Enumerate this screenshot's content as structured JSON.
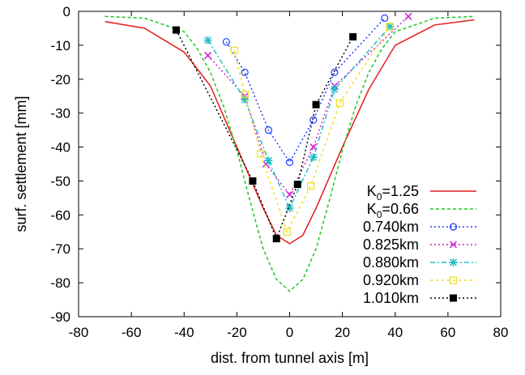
{
  "chart_data": {
    "type": "line",
    "xlabel": "dist. from tunnel axis [m]",
    "ylabel": "surf. settlement [mm]",
    "xlim": [
      -80,
      80
    ],
    "ylim": [
      -90,
      0
    ],
    "xticks": [
      -80,
      -60,
      -40,
      -20,
      0,
      20,
      40,
      60,
      80
    ],
    "yticks": [
      0,
      -10,
      -20,
      -30,
      -40,
      -50,
      -60,
      -70,
      -80,
      -90
    ],
    "grid": false,
    "legend_position": "bottom-right",
    "series": [
      {
        "name": "K0=1.25",
        "name_main": "K",
        "name_sub": "0",
        "name_rest": "=1.25",
        "color": "#e41a1c",
        "dash": "",
        "marker": "none",
        "x": [
          -70,
          -55,
          -40,
          -30,
          -20,
          -10,
          -5,
          0,
          5,
          10,
          20,
          30,
          40,
          55,
          70
        ],
        "y": [
          -3,
          -5,
          -12,
          -22,
          -40,
          -58,
          -66,
          -68.5,
          -66,
          -58,
          -40,
          -23,
          -10,
          -4,
          -2.5
        ]
      },
      {
        "name": "K0=0.66",
        "name_main": "K",
        "name_sub": "0",
        "name_rest": "=0.66",
        "color": "#1ec81e",
        "dash": "4,3",
        "marker": "none",
        "x": [
          -70,
          -55,
          -40,
          -35,
          -30,
          -25,
          -20,
          -15,
          -10,
          -5,
          0,
          5,
          10,
          15,
          20,
          25,
          30,
          35,
          40,
          55,
          70
        ],
        "y": [
          -1.5,
          -2,
          -6,
          -11,
          -18,
          -28,
          -41,
          -56,
          -70,
          -79,
          -82.5,
          -79,
          -70,
          -56,
          -41,
          -28,
          -18,
          -11,
          -6,
          -2,
          -1.5
        ]
      },
      {
        "name": "0.740km",
        "color": "#1e3cff",
        "dash": "2,3",
        "marker": "circle",
        "x": [
          -24,
          -17,
          -8,
          0,
          9,
          17,
          36
        ],
        "y": [
          -9,
          -18,
          -35,
          -44.5,
          -32,
          -18,
          -2
        ]
      },
      {
        "name": "0.825km",
        "color": "#d21ed2",
        "dash": "2,3",
        "marker": "cross",
        "x": [
          -31,
          -17,
          -9,
          0,
          9,
          17,
          45
        ],
        "y": [
          -13,
          -25,
          -45,
          -54,
          -40,
          -22,
          -1.5
        ]
      },
      {
        "name": "0.880km",
        "color": "#1ebec8",
        "dash": "6,3,2,3",
        "marker": "star",
        "x": [
          -31,
          -17,
          -8,
          0,
          9,
          17,
          38
        ],
        "y": [
          -8.5,
          -26,
          -44,
          -58,
          -43,
          -23,
          -4.5
        ]
      },
      {
        "name": "0.920km",
        "color": "#f0dc1e",
        "dash": "3,4",
        "marker": "square",
        "x": [
          -21,
          -17,
          -11,
          -1,
          8,
          19,
          38
        ],
        "y": [
          -11.5,
          -24.5,
          -42,
          -65,
          -51.5,
          -27,
          -4.5
        ]
      },
      {
        "name": "1.010km",
        "color": "#000000",
        "dash": "2,3",
        "marker": "filledsquare",
        "x": [
          -43,
          -14,
          -5,
          3,
          10,
          24
        ],
        "y": [
          -5.5,
          -50,
          -67,
          -51,
          -27.5,
          -7.5
        ]
      }
    ]
  }
}
